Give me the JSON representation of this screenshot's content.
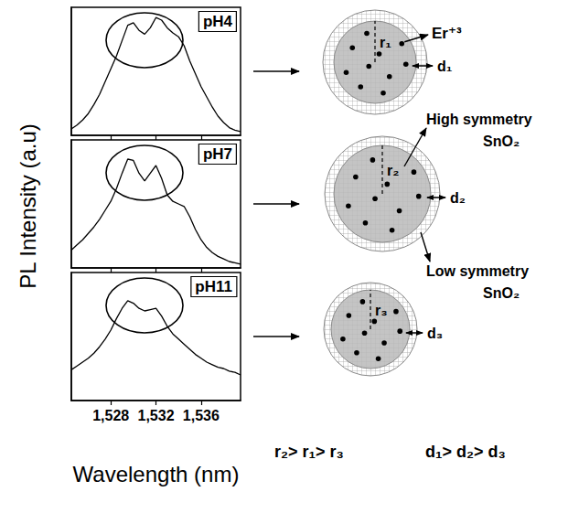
{
  "chart_data": [
    {
      "type": "line",
      "title": "pH4",
      "color": "#000000",
      "grid": false,
      "tick_labels": false,
      "xlim": [
        1524.5,
        1539.5
      ],
      "xticks": [
        1528,
        1532,
        1536
      ],
      "ylim": [
        0,
        1
      ],
      "yticks": [],
      "x": [
        1524.5,
        1525,
        1525.5,
        1526,
        1526.5,
        1527,
        1527.5,
        1528,
        1528.5,
        1529,
        1529.5,
        1530,
        1530.5,
        1531,
        1531.5,
        1532,
        1532.5,
        1533,
        1533.5,
        1534,
        1534.5,
        1535,
        1535.5,
        1536,
        1536.5,
        1537,
        1537.5,
        1538,
        1538.5,
        1539,
        1539.5
      ],
      "values": [
        0.05,
        0.08,
        0.12,
        0.17,
        0.24,
        0.32,
        0.42,
        0.52,
        0.62,
        0.74,
        0.86,
        0.88,
        0.82,
        0.79,
        0.84,
        0.92,
        0.9,
        0.84,
        0.8,
        0.77,
        0.7,
        0.58,
        0.48,
        0.38,
        0.3,
        0.22,
        0.15,
        0.1,
        0.06,
        0.04,
        0.03
      ]
    },
    {
      "type": "line",
      "title": "pH7",
      "color": "#000000",
      "grid": false,
      "tick_labels": false,
      "xlim": [
        1524.5,
        1539.5
      ],
      "xticks": [
        1528,
        1532,
        1536
      ],
      "ylim": [
        0,
        1
      ],
      "yticks": [],
      "x": [
        1524.5,
        1525,
        1525.5,
        1526,
        1526.5,
        1527,
        1527.5,
        1528,
        1528.5,
        1529,
        1529.5,
        1530,
        1530.5,
        1531,
        1531.5,
        1532,
        1532.5,
        1533,
        1533.5,
        1534,
        1534.5,
        1535,
        1535.5,
        1536,
        1536.5,
        1537,
        1537.5,
        1538,
        1538.5,
        1539,
        1539.5
      ],
      "values": [
        0.14,
        0.18,
        0.22,
        0.27,
        0.32,
        0.38,
        0.45,
        0.52,
        0.62,
        0.74,
        0.85,
        0.84,
        0.74,
        0.68,
        0.74,
        0.8,
        0.7,
        0.57,
        0.52,
        0.5,
        0.48,
        0.4,
        0.3,
        0.22,
        0.16,
        0.12,
        0.09,
        0.07,
        0.05,
        0.04,
        0.03
      ]
    },
    {
      "type": "line",
      "title": "pH11",
      "color": "#000000",
      "grid": false,
      "tick_labels": "x",
      "xlim": [
        1524.5,
        1539.5
      ],
      "xticks": [
        1528,
        1532,
        1536
      ],
      "ylim": [
        0,
        1
      ],
      "yticks": [],
      "x": [
        1524.5,
        1525,
        1525.5,
        1526,
        1526.5,
        1527,
        1527.5,
        1528,
        1528.5,
        1529,
        1529.5,
        1530,
        1530.5,
        1531,
        1531.5,
        1532,
        1532.5,
        1533,
        1533.5,
        1534,
        1534.5,
        1535,
        1535.5,
        1536,
        1536.5,
        1537,
        1537.5,
        1538,
        1538.5,
        1539,
        1539.5
      ],
      "values": [
        0.24,
        0.27,
        0.3,
        0.33,
        0.37,
        0.42,
        0.48,
        0.55,
        0.64,
        0.72,
        0.78,
        0.76,
        0.72,
        0.7,
        0.71,
        0.72,
        0.66,
        0.58,
        0.52,
        0.48,
        0.44,
        0.4,
        0.36,
        0.33,
        0.3,
        0.28,
        0.26,
        0.25,
        0.23,
        0.22,
        0.2
      ]
    }
  ],
  "axis_labels": {
    "x": "Wavelength (nm)",
    "y": "PL Intensity (a.u)"
  },
  "diagram": {
    "particles": [
      {
        "radius_label": "r₁",
        "shell_label": "d₁",
        "ion_label": "Er⁺³"
      },
      {
        "radius_label": "r₂",
        "shell_label": "d₂",
        "core_label": [
          "High symmetry",
          "SnO₂"
        ],
        "shell_label_text": [
          "Low symmetry",
          "SnO₂"
        ]
      },
      {
        "radius_label": "r₃",
        "shell_label": "d₃"
      }
    ],
    "relations": [
      "r₂> r₁> r₃",
      "d₁> d₂> d₃"
    ]
  }
}
